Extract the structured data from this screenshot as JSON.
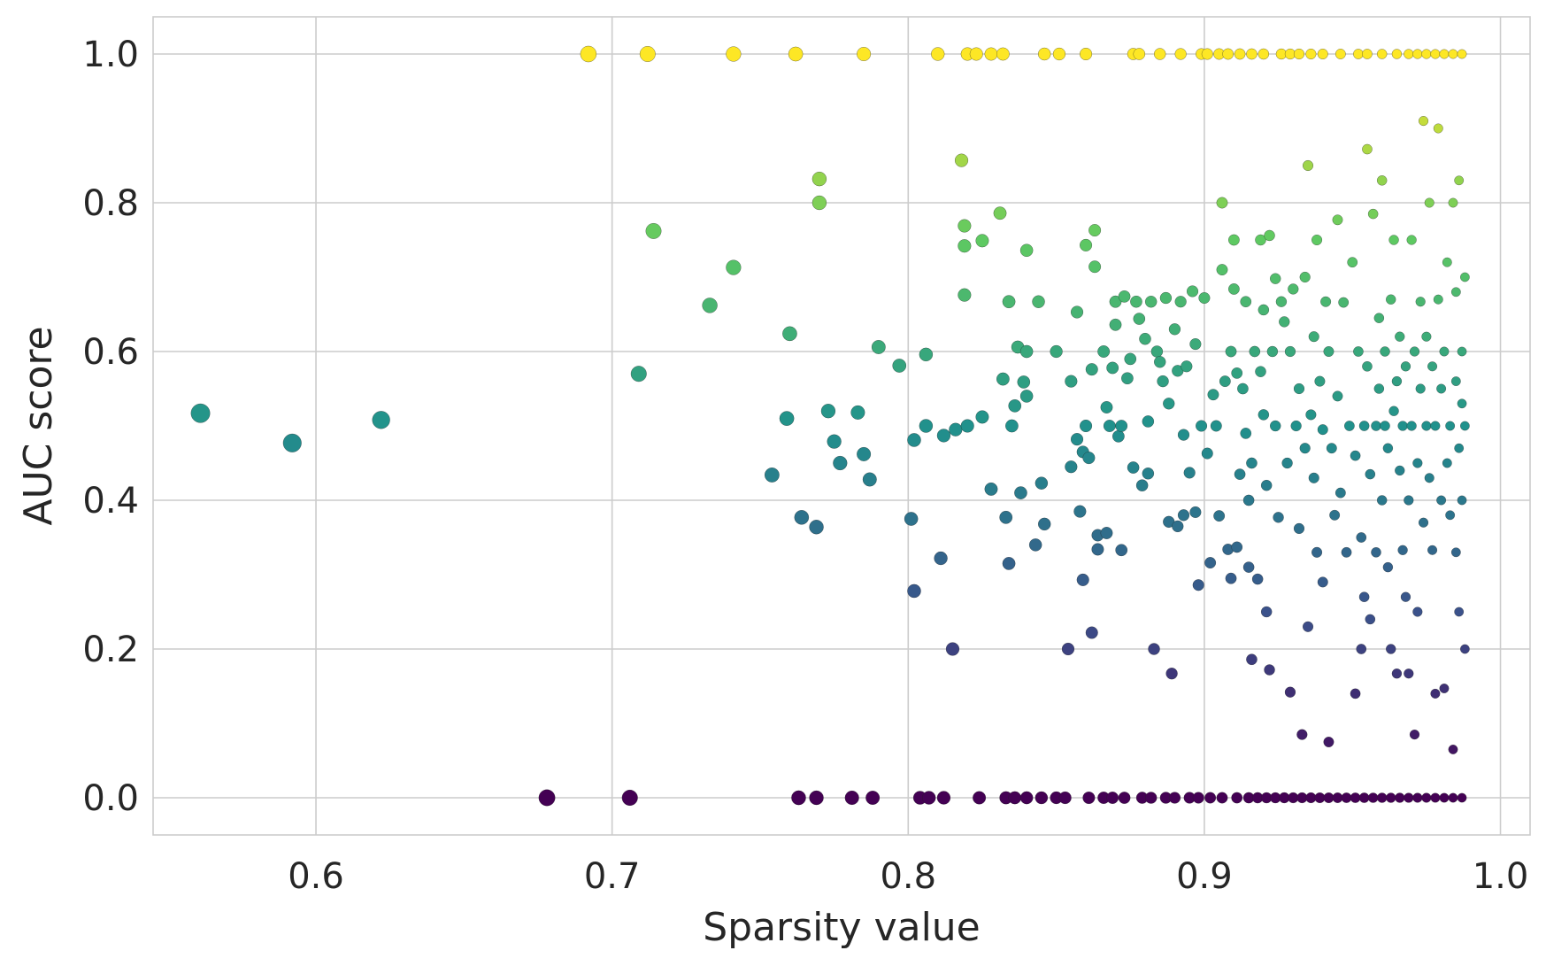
{
  "chart_data": {
    "type": "scatter",
    "title": "",
    "xlabel": "Sparsity value",
    "ylabel": "AUC score",
    "xlim": [
      0.545,
      1.01
    ],
    "ylim": [
      -0.05,
      1.05
    ],
    "xticks": [
      0.6,
      0.7,
      0.8,
      0.9,
      1.0
    ],
    "yticks": [
      0.0,
      0.2,
      0.4,
      0.6,
      0.8,
      1.0
    ],
    "xtick_labels": [
      "0.6",
      "0.7",
      "0.8",
      "0.9",
      "1.0"
    ],
    "ytick_labels": [
      "0.0",
      "0.2",
      "0.4",
      "0.6",
      "0.8",
      "1.0"
    ],
    "grid": true,
    "colormap": "viridis",
    "color_by": "y",
    "size_by": "x (lower sparsity = larger marker)",
    "colormap_stops": [
      "#440154",
      "#3b528b",
      "#21918c",
      "#5ec962",
      "#fde725"
    ],
    "points": [
      [
        0.561,
        0.517
      ],
      [
        0.592,
        0.477
      ],
      [
        0.622,
        0.508
      ],
      [
        0.678,
        0.0
      ],
      [
        0.706,
        0.0
      ],
      [
        0.763,
        0.0
      ],
      [
        0.769,
        0.0
      ],
      [
        0.781,
        0.0
      ],
      [
        0.788,
        0.0
      ],
      [
        0.804,
        0.0
      ],
      [
        0.807,
        0.0
      ],
      [
        0.812,
        0.0
      ],
      [
        0.824,
        0.0
      ],
      [
        0.833,
        0.0
      ],
      [
        0.836,
        0.0
      ],
      [
        0.84,
        0.0
      ],
      [
        0.845,
        0.0
      ],
      [
        0.85,
        0.0
      ],
      [
        0.853,
        0.0
      ],
      [
        0.861,
        0.0
      ],
      [
        0.866,
        0.0
      ],
      [
        0.869,
        0.0
      ],
      [
        0.873,
        0.0
      ],
      [
        0.879,
        0.0
      ],
      [
        0.882,
        0.0
      ],
      [
        0.887,
        0.0
      ],
      [
        0.89,
        0.0
      ],
      [
        0.895,
        0.0
      ],
      [
        0.898,
        0.0
      ],
      [
        0.902,
        0.0
      ],
      [
        0.906,
        0.0
      ],
      [
        0.911,
        0.0
      ],
      [
        0.915,
        0.0
      ],
      [
        0.918,
        0.0
      ],
      [
        0.921,
        0.0
      ],
      [
        0.924,
        0.0
      ],
      [
        0.927,
        0.0
      ],
      [
        0.93,
        0.0
      ],
      [
        0.933,
        0.0
      ],
      [
        0.936,
        0.0
      ],
      [
        0.939,
        0.0
      ],
      [
        0.942,
        0.0
      ],
      [
        0.945,
        0.0
      ],
      [
        0.948,
        0.0
      ],
      [
        0.951,
        0.0
      ],
      [
        0.954,
        0.0
      ],
      [
        0.957,
        0.0
      ],
      [
        0.96,
        0.0
      ],
      [
        0.963,
        0.0
      ],
      [
        0.966,
        0.0
      ],
      [
        0.969,
        0.0
      ],
      [
        0.972,
        0.0
      ],
      [
        0.975,
        0.0
      ],
      [
        0.978,
        0.0
      ],
      [
        0.981,
        0.0
      ],
      [
        0.984,
        0.0
      ],
      [
        0.987,
        0.0
      ],
      [
        0.692,
        1.0
      ],
      [
        0.712,
        1.0
      ],
      [
        0.741,
        1.0
      ],
      [
        0.762,
        1.0
      ],
      [
        0.785,
        1.0
      ],
      [
        0.81,
        1.0
      ],
      [
        0.82,
        1.0
      ],
      [
        0.823,
        1.0
      ],
      [
        0.828,
        1.0
      ],
      [
        0.832,
        1.0
      ],
      [
        0.846,
        1.0
      ],
      [
        0.851,
        1.0
      ],
      [
        0.86,
        1.0
      ],
      [
        0.876,
        1.0
      ],
      [
        0.878,
        1.0
      ],
      [
        0.885,
        1.0
      ],
      [
        0.892,
        1.0
      ],
      [
        0.899,
        1.0
      ],
      [
        0.901,
        1.0
      ],
      [
        0.905,
        1.0
      ],
      [
        0.908,
        1.0
      ],
      [
        0.912,
        1.0
      ],
      [
        0.916,
        1.0
      ],
      [
        0.92,
        1.0
      ],
      [
        0.926,
        1.0
      ],
      [
        0.929,
        1.0
      ],
      [
        0.932,
        1.0
      ],
      [
        0.936,
        1.0
      ],
      [
        0.94,
        1.0
      ],
      [
        0.946,
        1.0
      ],
      [
        0.952,
        1.0
      ],
      [
        0.955,
        1.0
      ],
      [
        0.96,
        1.0
      ],
      [
        0.965,
        1.0
      ],
      [
        0.969,
        1.0
      ],
      [
        0.972,
        1.0
      ],
      [
        0.975,
        1.0
      ],
      [
        0.978,
        1.0
      ],
      [
        0.981,
        1.0
      ],
      [
        0.984,
        1.0
      ],
      [
        0.987,
        1.0
      ],
      [
        0.709,
        0.57
      ],
      [
        0.714,
        0.762
      ],
      [
        0.733,
        0.662
      ],
      [
        0.741,
        0.713
      ],
      [
        0.754,
        0.434
      ],
      [
        0.759,
        0.51
      ],
      [
        0.76,
        0.624
      ],
      [
        0.764,
        0.377
      ],
      [
        0.769,
        0.364
      ],
      [
        0.77,
        0.832
      ],
      [
        0.77,
        0.8
      ],
      [
        0.773,
        0.52
      ],
      [
        0.775,
        0.479
      ],
      [
        0.777,
        0.45
      ],
      [
        0.783,
        0.518
      ],
      [
        0.785,
        0.462
      ],
      [
        0.787,
        0.428
      ],
      [
        0.79,
        0.606
      ],
      [
        0.797,
        0.581
      ],
      [
        0.801,
        0.375
      ],
      [
        0.802,
        0.278
      ],
      [
        0.802,
        0.481
      ],
      [
        0.806,
        0.596
      ],
      [
        0.806,
        0.5
      ],
      [
        0.811,
        0.322
      ],
      [
        0.812,
        0.487
      ],
      [
        0.815,
        0.2
      ],
      [
        0.816,
        0.495
      ],
      [
        0.818,
        0.857
      ],
      [
        0.819,
        0.742
      ],
      [
        0.819,
        0.769
      ],
      [
        0.819,
        0.676
      ],
      [
        0.82,
        0.5
      ],
      [
        0.825,
        0.749
      ],
      [
        0.825,
        0.512
      ],
      [
        0.828,
        0.415
      ],
      [
        0.831,
        0.786
      ],
      [
        0.832,
        0.563
      ],
      [
        0.833,
        0.377
      ],
      [
        0.834,
        0.667
      ],
      [
        0.834,
        0.315
      ],
      [
        0.835,
        0.5
      ],
      [
        0.836,
        0.527
      ],
      [
        0.837,
        0.606
      ],
      [
        0.838,
        0.41
      ],
      [
        0.839,
        0.559
      ],
      [
        0.84,
        0.736
      ],
      [
        0.84,
        0.6
      ],
      [
        0.84,
        0.54
      ],
      [
        0.843,
        0.34
      ],
      [
        0.844,
        0.667
      ],
      [
        0.845,
        0.423
      ],
      [
        0.846,
        0.368
      ],
      [
        0.85,
        0.6
      ],
      [
        0.854,
        0.2
      ],
      [
        0.855,
        0.445
      ],
      [
        0.855,
        0.56
      ],
      [
        0.857,
        0.653
      ],
      [
        0.857,
        0.482
      ],
      [
        0.858,
        0.385
      ],
      [
        0.859,
        0.293
      ],
      [
        0.859,
        0.465
      ],
      [
        0.86,
        0.743
      ],
      [
        0.86,
        0.5
      ],
      [
        0.861,
        0.457
      ],
      [
        0.862,
        0.222
      ],
      [
        0.862,
        0.576
      ],
      [
        0.863,
        0.763
      ],
      [
        0.863,
        0.714
      ],
      [
        0.864,
        0.334
      ],
      [
        0.864,
        0.353
      ],
      [
        0.866,
        0.6
      ],
      [
        0.867,
        0.356
      ],
      [
        0.867,
        0.525
      ],
      [
        0.868,
        0.5
      ],
      [
        0.869,
        0.578
      ],
      [
        0.87,
        0.636
      ],
      [
        0.87,
        0.667
      ],
      [
        0.871,
        0.486
      ],
      [
        0.872,
        0.333
      ],
      [
        0.872,
        0.5
      ],
      [
        0.873,
        0.674
      ],
      [
        0.874,
        0.564
      ],
      [
        0.875,
        0.59
      ],
      [
        0.876,
        0.444
      ],
      [
        0.877,
        0.667
      ],
      [
        0.878,
        0.644
      ],
      [
        0.879,
        0.42
      ],
      [
        0.88,
        0.617
      ],
      [
        0.881,
        0.506
      ],
      [
        0.881,
        0.436
      ],
      [
        0.882,
        0.667
      ],
      [
        0.883,
        0.2
      ],
      [
        0.884,
        0.6
      ],
      [
        0.885,
        0.586
      ],
      [
        0.886,
        0.56
      ],
      [
        0.887,
        0.672
      ],
      [
        0.888,
        0.53
      ],
      [
        0.888,
        0.371
      ],
      [
        0.889,
        0.167
      ],
      [
        0.89,
        0.63
      ],
      [
        0.891,
        0.574
      ],
      [
        0.891,
        0.365
      ],
      [
        0.892,
        0.667
      ],
      [
        0.893,
        0.488
      ],
      [
        0.893,
        0.38
      ],
      [
        0.894,
        0.58
      ],
      [
        0.895,
        0.437
      ],
      [
        0.896,
        0.681
      ],
      [
        0.897,
        0.61
      ],
      [
        0.897,
        0.384
      ],
      [
        0.898,
        0.286
      ],
      [
        0.899,
        0.5
      ],
      [
        0.9,
        0.672
      ],
      [
        0.901,
        0.463
      ],
      [
        0.902,
        0.316
      ],
      [
        0.903,
        0.542
      ],
      [
        0.904,
        0.5
      ],
      [
        0.905,
        0.379
      ],
      [
        0.906,
        0.71
      ],
      [
        0.906,
        0.8
      ],
      [
        0.907,
        0.56
      ],
      [
        0.908,
        0.334
      ],
      [
        0.909,
        0.6
      ],
      [
        0.909,
        0.295
      ],
      [
        0.91,
        0.684
      ],
      [
        0.91,
        0.75
      ],
      [
        0.911,
        0.571
      ],
      [
        0.911,
        0.337
      ],
      [
        0.912,
        0.435
      ],
      [
        0.913,
        0.55
      ],
      [
        0.914,
        0.667
      ],
      [
        0.914,
        0.49
      ],
      [
        0.915,
        0.31
      ],
      [
        0.915,
        0.4
      ],
      [
        0.916,
        0.186
      ],
      [
        0.916,
        0.45
      ],
      [
        0.917,
        0.6
      ],
      [
        0.918,
        0.294
      ],
      [
        0.919,
        0.75
      ],
      [
        0.919,
        0.573
      ],
      [
        0.92,
        0.656
      ],
      [
        0.92,
        0.515
      ],
      [
        0.921,
        0.25
      ],
      [
        0.921,
        0.42
      ],
      [
        0.922,
        0.756
      ],
      [
        0.922,
        0.172
      ],
      [
        0.923,
        0.6
      ],
      [
        0.924,
        0.698
      ],
      [
        0.924,
        0.5
      ],
      [
        0.925,
        0.377
      ],
      [
        0.926,
        0.667
      ],
      [
        0.927,
        0.64
      ],
      [
        0.928,
        0.45
      ],
      [
        0.929,
        0.142
      ],
      [
        0.929,
        0.6
      ],
      [
        0.93,
        0.684
      ],
      [
        0.931,
        0.5
      ],
      [
        0.932,
        0.362
      ],
      [
        0.932,
        0.55
      ],
      [
        0.933,
        0.085
      ],
      [
        0.934,
        0.7
      ],
      [
        0.934,
        0.47
      ],
      [
        0.935,
        0.23
      ],
      [
        0.935,
        0.85
      ],
      [
        0.936,
        0.515
      ],
      [
        0.937,
        0.43
      ],
      [
        0.937,
        0.62
      ],
      [
        0.938,
        0.33
      ],
      [
        0.938,
        0.75
      ],
      [
        0.939,
        0.56
      ],
      [
        0.94,
        0.29
      ],
      [
        0.94,
        0.495
      ],
      [
        0.941,
        0.667
      ],
      [
        0.942,
        0.075
      ],
      [
        0.942,
        0.6
      ],
      [
        0.943,
        0.47
      ],
      [
        0.944,
        0.38
      ],
      [
        0.945,
        0.777
      ],
      [
        0.945,
        0.54
      ],
      [
        0.946,
        0.41
      ],
      [
        0.947,
        0.666
      ],
      [
        0.948,
        0.33
      ],
      [
        0.949,
        0.5
      ],
      [
        0.95,
        0.72
      ],
      [
        0.951,
        0.14
      ],
      [
        0.951,
        0.46
      ],
      [
        0.952,
        0.6
      ],
      [
        0.953,
        0.2
      ],
      [
        0.953,
        0.35
      ],
      [
        0.954,
        0.27
      ],
      [
        0.954,
        0.5
      ],
      [
        0.955,
        0.872
      ],
      [
        0.955,
        0.58
      ],
      [
        0.956,
        0.24
      ],
      [
        0.956,
        0.435
      ],
      [
        0.957,
        0.785
      ],
      [
        0.958,
        0.5
      ],
      [
        0.958,
        0.33
      ],
      [
        0.959,
        0.645
      ],
      [
        0.959,
        0.55
      ],
      [
        0.96,
        0.83
      ],
      [
        0.96,
        0.4
      ],
      [
        0.961,
        0.5
      ],
      [
        0.961,
        0.6
      ],
      [
        0.962,
        0.31
      ],
      [
        0.962,
        0.47
      ],
      [
        0.963,
        0.67
      ],
      [
        0.963,
        0.2
      ],
      [
        0.964,
        0.52
      ],
      [
        0.964,
        0.75
      ],
      [
        0.965,
        0.56
      ],
      [
        0.965,
        0.167
      ],
      [
        0.966,
        0.44
      ],
      [
        0.966,
        0.62
      ],
      [
        0.967,
        0.333
      ],
      [
        0.967,
        0.5
      ],
      [
        0.968,
        0.27
      ],
      [
        0.968,
        0.58
      ],
      [
        0.969,
        0.167
      ],
      [
        0.969,
        0.4
      ],
      [
        0.97,
        0.75
      ],
      [
        0.97,
        0.5
      ],
      [
        0.971,
        0.6
      ],
      [
        0.971,
        0.085
      ],
      [
        0.972,
        0.45
      ],
      [
        0.972,
        0.25
      ],
      [
        0.973,
        0.55
      ],
      [
        0.973,
        0.667
      ],
      [
        0.974,
        0.91
      ],
      [
        0.974,
        0.37
      ],
      [
        0.975,
        0.5
      ],
      [
        0.975,
        0.62
      ],
      [
        0.976,
        0.8
      ],
      [
        0.976,
        0.43
      ],
      [
        0.977,
        0.333
      ],
      [
        0.977,
        0.58
      ],
      [
        0.978,
        0.14
      ],
      [
        0.978,
        0.5
      ],
      [
        0.979,
        0.67
      ],
      [
        0.979,
        0.9
      ],
      [
        0.98,
        0.4
      ],
      [
        0.98,
        0.55
      ],
      [
        0.981,
        0.147
      ],
      [
        0.981,
        0.6
      ],
      [
        0.982,
        0.72
      ],
      [
        0.982,
        0.45
      ],
      [
        0.983,
        0.38
      ],
      [
        0.983,
        0.5
      ],
      [
        0.984,
        0.8
      ],
      [
        0.984,
        0.065
      ],
      [
        0.985,
        0.56
      ],
      [
        0.985,
        0.33
      ],
      [
        0.985,
        0.68
      ],
      [
        0.986,
        0.47
      ],
      [
        0.986,
        0.25
      ],
      [
        0.986,
        0.83
      ],
      [
        0.987,
        0.6
      ],
      [
        0.987,
        0.4
      ],
      [
        0.987,
        0.53
      ],
      [
        0.988,
        0.2
      ],
      [
        0.988,
        0.7
      ],
      [
        0.988,
        0.5
      ]
    ]
  }
}
